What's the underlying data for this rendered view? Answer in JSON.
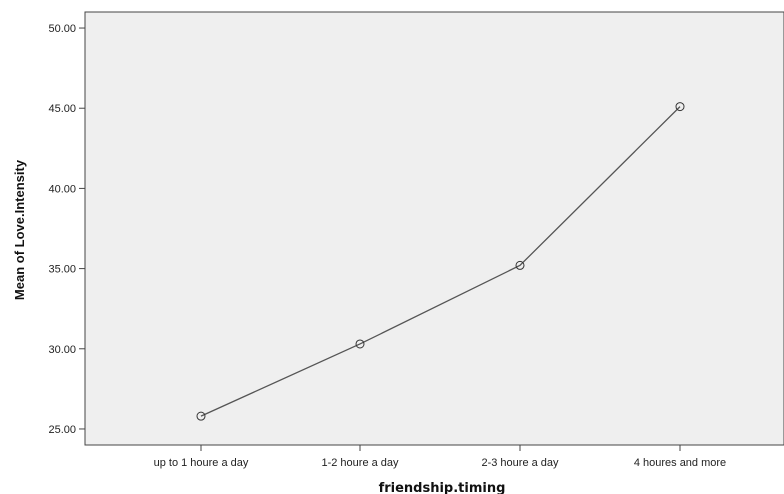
{
  "colors": {
    "plot_background": "#efefef",
    "line": "#555555",
    "axis": "#444444"
  },
  "chart_data": {
    "type": "line",
    "title": "",
    "xlabel": "friendship.timing",
    "ylabel": "Mean of Love.Intensity",
    "categories": [
      "up to 1 houre a day",
      "1-2 houre a day",
      "2-3 houre a day",
      "4 houres and more"
    ],
    "series": [
      {
        "values": [
          25.8,
          30.3,
          35.2,
          45.1
        ]
      }
    ],
    "ylim": [
      24.0,
      51.0
    ],
    "yticks": [
      25.0,
      30.0,
      35.0,
      40.0,
      45.0,
      50.0
    ],
    "ytick_labels": [
      "25.00",
      "30.00",
      "35.00",
      "40.00",
      "45.00",
      "50.00"
    ],
    "grid": false,
    "legend": "none",
    "marker": "open-circle"
  }
}
